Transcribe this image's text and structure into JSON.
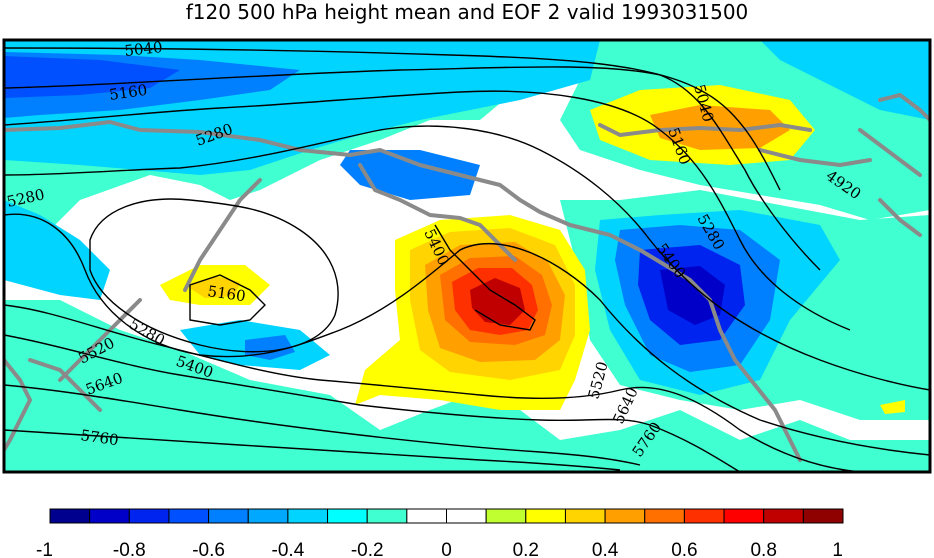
{
  "title": "f120 500 hPa height mean and EOF 2 valid 1993031500",
  "colorbar": {
    "colors": [
      "#00008f",
      "#0000c8",
      "#0024f0",
      "#0050ff",
      "#0080ff",
      "#00a8ff",
      "#00d4ff",
      "#00ffff",
      "#40ffd0",
      "#ffffff",
      "#ffffff",
      "#c0ff30",
      "#ffff00",
      "#ffd400",
      "#ffa000",
      "#ff7000",
      "#ff3000",
      "#ff0000",
      "#c00000",
      "#8f0000"
    ],
    "tick_labels": [
      "-1",
      "-0.8",
      "-0.6",
      "-0.4",
      "-0.2",
      "0",
      "0.2",
      "0.4",
      "0.6",
      "0.8",
      "1"
    ]
  },
  "contour_labels": [
    "5040",
    "5160",
    "5280",
    "5280",
    "5160",
    "5280",
    "5520",
    "5400",
    "5640",
    "5760",
    "5400",
    "5040",
    "5160",
    "4920",
    "5280",
    "5400",
    "5520",
    "5640",
    "5760"
  ],
  "colors": {
    "coast": "#8a8a8a",
    "contour": "#000000",
    "frame": "#000000"
  }
}
